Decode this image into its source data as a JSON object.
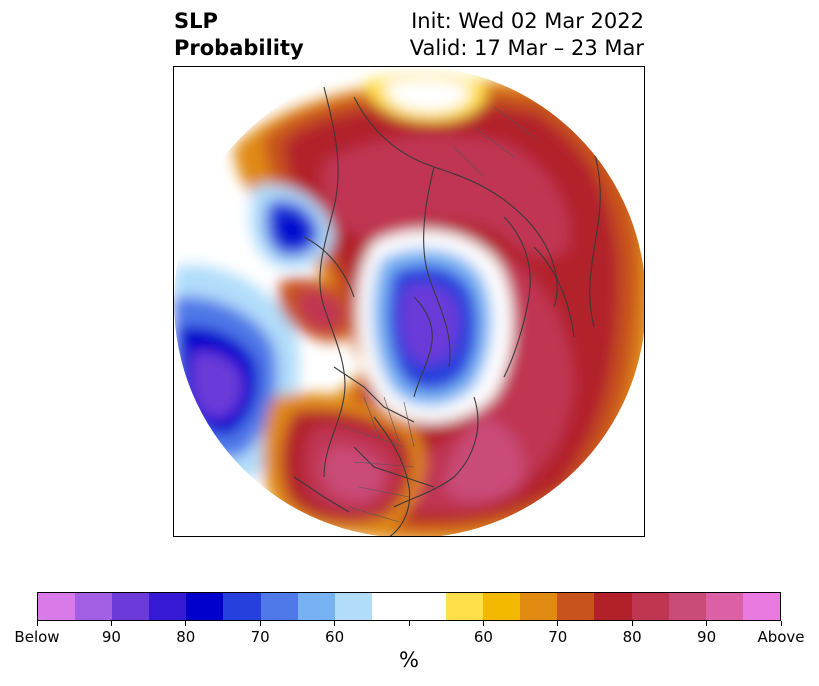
{
  "title": {
    "left_line1": "SLP",
    "left_line2": "Probability",
    "right_line1": "Init: Wed 02 Mar 2022",
    "right_line2": "Valid: 17 Mar – 23 Mar"
  },
  "colorbar": {
    "colors": [
      "#d87ae8",
      "#a35fe3",
      "#6b3ad9",
      "#3519d4",
      "#0000cd",
      "#2540dc",
      "#4f78e8",
      "#77b3f3",
      "#b1ddfa",
      "#ffffff",
      "#ffffff",
      "#ffe04a",
      "#f3b800",
      "#e08a12",
      "#c8531c",
      "#b2212a",
      "#c03652",
      "#c94b78",
      "#db60a6",
      "#e87ae0"
    ],
    "tick_labels": [
      "Below",
      "90",
      "80",
      "70",
      "60",
      "",
      "60",
      "70",
      "80",
      "90",
      "Above"
    ],
    "unit": "%"
  },
  "map": {
    "projection": "polar stereographic (Northern Hemisphere)",
    "field": "SLP probability anomaly",
    "features": [
      {
        "name": "north-america-positive-core",
        "category": "Above",
        "peak": "90"
      },
      {
        "name": "atlantic-positive-core",
        "category": "Above",
        "peak": "90"
      },
      {
        "name": "eurasia-positive-core",
        "category": "Above",
        "peak": "80"
      },
      {
        "name": "arctic-negative-core",
        "category": "Below",
        "peak": "90"
      },
      {
        "name": "pacific-negative-core",
        "category": "Below",
        "peak": "90"
      },
      {
        "name": "bering-negative-core",
        "category": "Below",
        "peak": "80"
      }
    ]
  }
}
